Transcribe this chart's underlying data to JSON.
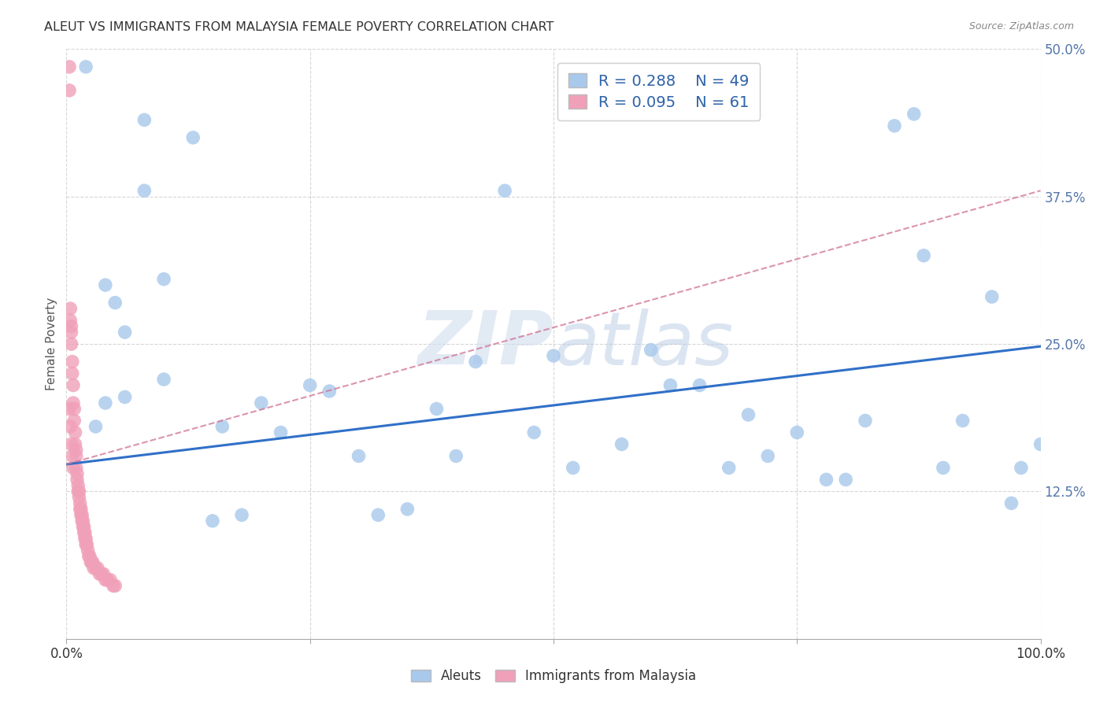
{
  "title": "ALEUT VS IMMIGRANTS FROM MALAYSIA FEMALE POVERTY CORRELATION CHART",
  "source": "Source: ZipAtlas.com",
  "ylabel": "Female Poverty",
  "watermark": "ZIPatlas",
  "x_min": 0.0,
  "x_max": 1.0,
  "y_min": 0.0,
  "y_max": 0.5,
  "x_ticks": [
    0.0,
    0.25,
    0.5,
    0.75,
    1.0
  ],
  "y_ticks": [
    0.0,
    0.125,
    0.25,
    0.375,
    0.5
  ],
  "y_tick_labels": [
    "",
    "12.5%",
    "25.0%",
    "37.5%",
    "50.0%"
  ],
  "aleuts_R": "0.288",
  "aleuts_N": "49",
  "malaysia_R": "0.095",
  "malaysia_N": "61",
  "aleuts_color": "#A8C8EC",
  "malaysia_color": "#F0A0B8",
  "aleuts_line_color": "#3070C8",
  "malaysia_line_color": "#D07090",
  "background_color": "#FFFFFF",
  "grid_color": "#CCCCCC",
  "aleuts_x": [
    0.02,
    0.08,
    0.13,
    0.04,
    0.04,
    0.05,
    0.06,
    0.1,
    0.1,
    0.16,
    0.2,
    0.27,
    0.3,
    0.38,
    0.42,
    0.45,
    0.48,
    0.5,
    0.52,
    0.57,
    0.6,
    0.62,
    0.65,
    0.68,
    0.7,
    0.72,
    0.75,
    0.78,
    0.8,
    0.82,
    0.85,
    0.87,
    0.88,
    0.9,
    0.92,
    0.95,
    0.97,
    0.98,
    1.0,
    0.03,
    0.06,
    0.08,
    0.15,
    0.18,
    0.22,
    0.25,
    0.32,
    0.35,
    0.4
  ],
  "aleuts_y": [
    0.485,
    0.44,
    0.425,
    0.3,
    0.2,
    0.285,
    0.205,
    0.305,
    0.22,
    0.18,
    0.2,
    0.21,
    0.155,
    0.195,
    0.235,
    0.38,
    0.175,
    0.24,
    0.145,
    0.165,
    0.245,
    0.215,
    0.215,
    0.145,
    0.19,
    0.155,
    0.175,
    0.135,
    0.135,
    0.185,
    0.435,
    0.445,
    0.325,
    0.145,
    0.185,
    0.29,
    0.115,
    0.145,
    0.165,
    0.18,
    0.26,
    0.38,
    0.1,
    0.105,
    0.175,
    0.215,
    0.105,
    0.11,
    0.155
  ],
  "malaysia_x": [
    0.003,
    0.003,
    0.004,
    0.004,
    0.005,
    0.005,
    0.005,
    0.006,
    0.006,
    0.007,
    0.007,
    0.008,
    0.008,
    0.009,
    0.009,
    0.01,
    0.01,
    0.01,
    0.011,
    0.011,
    0.012,
    0.012,
    0.013,
    0.013,
    0.014,
    0.014,
    0.015,
    0.015,
    0.016,
    0.016,
    0.017,
    0.017,
    0.018,
    0.018,
    0.019,
    0.019,
    0.02,
    0.02,
    0.021,
    0.022,
    0.023,
    0.024,
    0.025,
    0.026,
    0.027,
    0.028,
    0.03,
    0.032,
    0.034,
    0.036,
    0.038,
    0.04,
    0.042,
    0.045,
    0.048,
    0.05,
    0.003,
    0.004,
    0.005,
    0.006,
    0.007
  ],
  "malaysia_y": [
    0.485,
    0.465,
    0.28,
    0.27,
    0.265,
    0.26,
    0.25,
    0.235,
    0.225,
    0.215,
    0.2,
    0.195,
    0.185,
    0.175,
    0.165,
    0.16,
    0.155,
    0.145,
    0.14,
    0.135,
    0.13,
    0.125,
    0.125,
    0.12,
    0.115,
    0.11,
    0.11,
    0.105,
    0.105,
    0.1,
    0.1,
    0.095,
    0.095,
    0.09,
    0.09,
    0.085,
    0.085,
    0.08,
    0.08,
    0.075,
    0.07,
    0.07,
    0.065,
    0.065,
    0.065,
    0.06,
    0.06,
    0.06,
    0.055,
    0.055,
    0.055,
    0.05,
    0.05,
    0.05,
    0.045,
    0.045,
    0.195,
    0.18,
    0.165,
    0.155,
    0.145
  ],
  "aleuts_line_x0": 0.0,
  "aleuts_line_x1": 1.0,
  "aleuts_line_y0": 0.148,
  "aleuts_line_y1": 0.248,
  "malaysia_line_x0": 0.0,
  "malaysia_line_x1": 1.0,
  "malaysia_line_y0": 0.148,
  "malaysia_line_y1": 0.38
}
